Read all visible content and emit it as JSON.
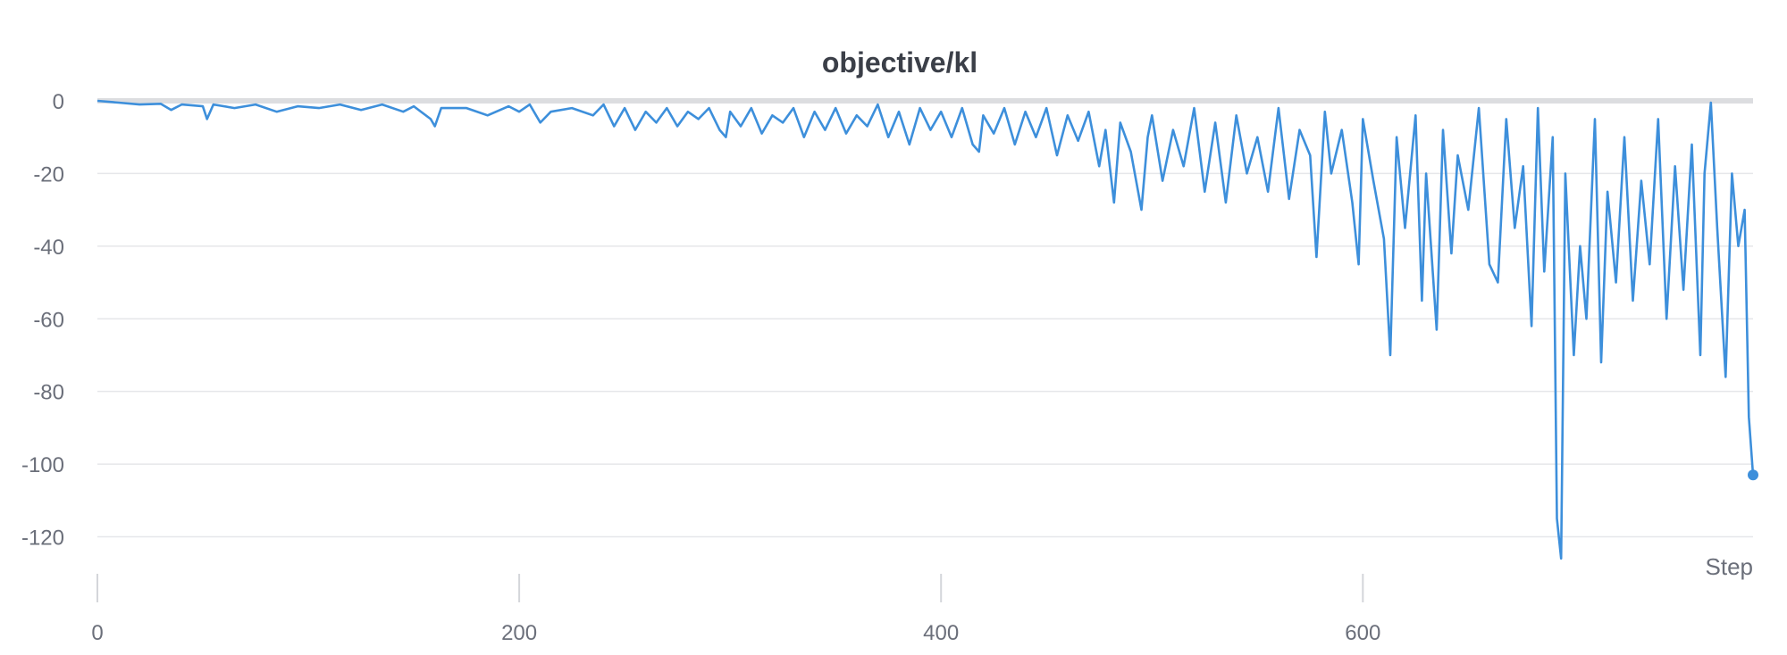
{
  "chart_data": {
    "type": "line",
    "title": "objective/kl",
    "xlabel": "Step",
    "ylabel": "",
    "xlim": [
      0,
      785
    ],
    "ylim": [
      -127,
      0
    ],
    "x_ticks": [
      0,
      200,
      400,
      600
    ],
    "y_ticks": [
      0,
      -20,
      -40,
      -60,
      -80,
      -100,
      -120
    ],
    "x_tick_labels": [
      "0",
      "200",
      "400",
      "600"
    ],
    "y_tick_labels": [
      "0",
      "-20",
      "-40",
      "-60",
      "-80",
      "-100",
      "-120"
    ],
    "grid": true,
    "legend": "none",
    "series": [
      {
        "name": "objective/kl",
        "color": "#3d8fdb",
        "values_note": "Approximate per-step trace; x = step (0..785), y = KL value (negative, growing variance).",
        "points": [
          [
            0,
            0
          ],
          [
            10,
            -0.5
          ],
          [
            20,
            -1
          ],
          [
            30,
            -0.8
          ],
          [
            35,
            -2.5
          ],
          [
            40,
            -1
          ],
          [
            50,
            -1.5
          ],
          [
            52,
            -5
          ],
          [
            55,
            -1
          ],
          [
            65,
            -2
          ],
          [
            75,
            -1
          ],
          [
            85,
            -3
          ],
          [
            95,
            -1.5
          ],
          [
            105,
            -2
          ],
          [
            115,
            -1
          ],
          [
            125,
            -2.5
          ],
          [
            135,
            -1
          ],
          [
            145,
            -3
          ],
          [
            150,
            -1.5
          ],
          [
            158,
            -5
          ],
          [
            160,
            -7
          ],
          [
            163,
            -2
          ],
          [
            175,
            -2
          ],
          [
            185,
            -4
          ],
          [
            195,
            -1.5
          ],
          [
            200,
            -3
          ],
          [
            205,
            -1
          ],
          [
            210,
            -6
          ],
          [
            215,
            -3
          ],
          [
            225,
            -2
          ],
          [
            235,
            -4
          ],
          [
            240,
            -1
          ],
          [
            245,
            -7
          ],
          [
            250,
            -2
          ],
          [
            255,
            -8
          ],
          [
            260,
            -3
          ],
          [
            265,
            -6
          ],
          [
            270,
            -2
          ],
          [
            275,
            -7
          ],
          [
            280,
            -3
          ],
          [
            285,
            -5
          ],
          [
            290,
            -2
          ],
          [
            295,
            -8
          ],
          [
            298,
            -10
          ],
          [
            300,
            -3
          ],
          [
            305,
            -7
          ],
          [
            310,
            -2
          ],
          [
            315,
            -9
          ],
          [
            320,
            -4
          ],
          [
            325,
            -6
          ],
          [
            330,
            -2
          ],
          [
            335,
            -10
          ],
          [
            340,
            -3
          ],
          [
            345,
            -8
          ],
          [
            350,
            -2
          ],
          [
            355,
            -9
          ],
          [
            360,
            -4
          ],
          [
            365,
            -7
          ],
          [
            370,
            -1
          ],
          [
            375,
            -10
          ],
          [
            380,
            -3
          ],
          [
            385,
            -12
          ],
          [
            390,
            -2
          ],
          [
            395,
            -8
          ],
          [
            400,
            -3
          ],
          [
            405,
            -10
          ],
          [
            410,
            -2
          ],
          [
            415,
            -12
          ],
          [
            418,
            -14
          ],
          [
            420,
            -4
          ],
          [
            425,
            -9
          ],
          [
            430,
            -2
          ],
          [
            435,
            -12
          ],
          [
            440,
            -3
          ],
          [
            445,
            -10
          ],
          [
            450,
            -2
          ],
          [
            455,
            -15
          ],
          [
            460,
            -4
          ],
          [
            465,
            -11
          ],
          [
            470,
            -3
          ],
          [
            475,
            -18
          ],
          [
            478,
            -8
          ],
          [
            482,
            -28
          ],
          [
            485,
            -6
          ],
          [
            490,
            -14
          ],
          [
            495,
            -30
          ],
          [
            498,
            -10
          ],
          [
            500,
            -4
          ],
          [
            505,
            -22
          ],
          [
            510,
            -8
          ],
          [
            515,
            -18
          ],
          [
            520,
            -2
          ],
          [
            525,
            -25
          ],
          [
            530,
            -6
          ],
          [
            535,
            -28
          ],
          [
            540,
            -4
          ],
          [
            545,
            -20
          ],
          [
            550,
            -10
          ],
          [
            555,
            -25
          ],
          [
            560,
            -2
          ],
          [
            565,
            -27
          ],
          [
            570,
            -8
          ],
          [
            575,
            -15
          ],
          [
            578,
            -43
          ],
          [
            582,
            -3
          ],
          [
            585,
            -20
          ],
          [
            590,
            -8
          ],
          [
            595,
            -28
          ],
          [
            598,
            -45
          ],
          [
            600,
            -5
          ],
          [
            605,
            -22
          ],
          [
            610,
            -38
          ],
          [
            613,
            -70
          ],
          [
            616,
            -10
          ],
          [
            620,
            -35
          ],
          [
            625,
            -4
          ],
          [
            628,
            -55
          ],
          [
            630,
            -20
          ],
          [
            635,
            -63
          ],
          [
            638,
            -8
          ],
          [
            642,
            -42
          ],
          [
            645,
            -15
          ],
          [
            650,
            -30
          ],
          [
            655,
            -2
          ],
          [
            660,
            -45
          ],
          [
            664,
            -50
          ],
          [
            668,
            -5
          ],
          [
            672,
            -35
          ],
          [
            676,
            -18
          ],
          [
            680,
            -62
          ],
          [
            683,
            -2
          ],
          [
            686,
            -47
          ],
          [
            690,
            -10
          ],
          [
            692,
            -115
          ],
          [
            694,
            -126
          ],
          [
            696,
            -20
          ],
          [
            700,
            -70
          ],
          [
            703,
            -40
          ],
          [
            706,
            -60
          ],
          [
            710,
            -5
          ],
          [
            713,
            -72
          ],
          [
            716,
            -25
          ],
          [
            720,
            -50
          ],
          [
            724,
            -10
          ],
          [
            728,
            -55
          ],
          [
            732,
            -22
          ],
          [
            736,
            -45
          ],
          [
            740,
            -5
          ],
          [
            744,
            -60
          ],
          [
            748,
            -18
          ],
          [
            752,
            -52
          ],
          [
            756,
            -12
          ],
          [
            760,
            -70
          ],
          [
            762,
            -20
          ],
          [
            765,
            -0.5
          ],
          [
            768,
            -35
          ],
          [
            772,
            -76
          ],
          [
            775,
            -20
          ],
          [
            778,
            -40
          ],
          [
            781,
            -30
          ],
          [
            783,
            -87
          ],
          [
            785,
            -103
          ]
        ]
      }
    ]
  }
}
